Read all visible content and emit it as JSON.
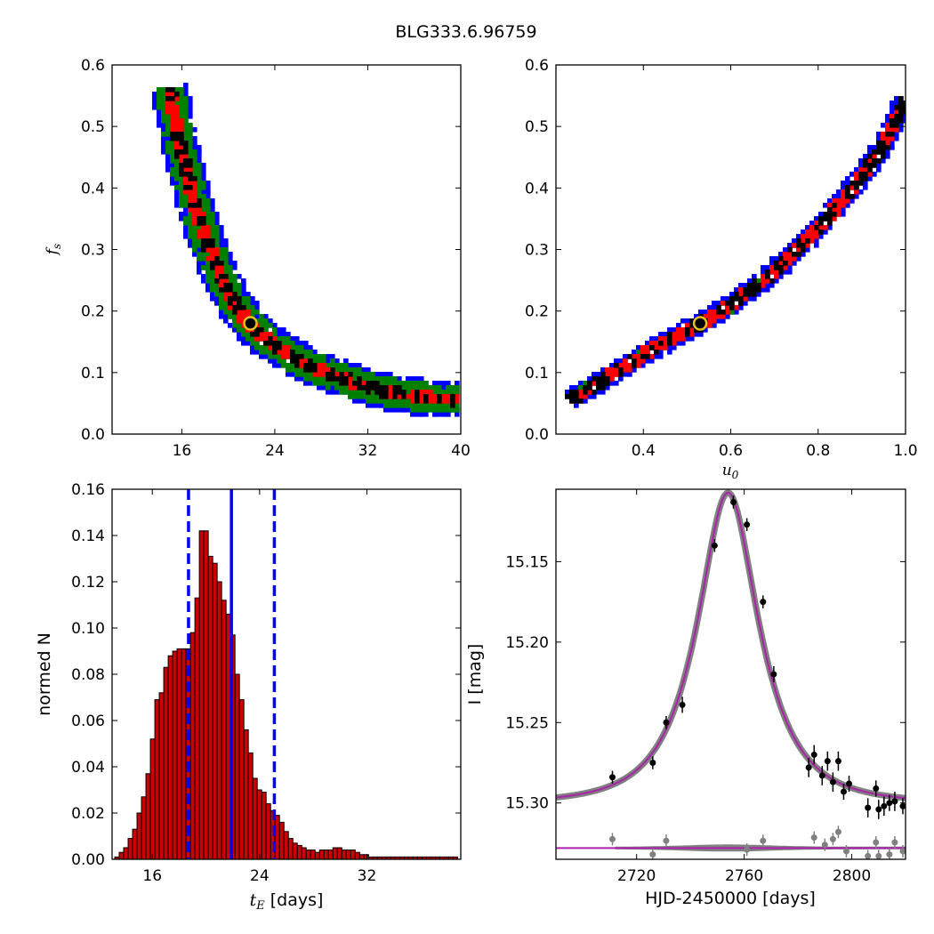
{
  "figure": {
    "title": "BLG333.6.96759"
  },
  "chart_data": [
    {
      "id": "fs-vs-tE",
      "type": "heatmap",
      "xlabel": "",
      "ylabel": "f_s",
      "xlim": [
        10,
        40
      ],
      "ylim": [
        0.0,
        0.6
      ],
      "xticks": [
        16,
        24,
        32,
        40
      ],
      "yticks": [
        0.0,
        0.1,
        0.2,
        0.3,
        0.4,
        0.5,
        0.6
      ],
      "ytick_labels": [
        "0.0",
        "0.1",
        "0.2",
        "0.3",
        "0.4",
        "0.5",
        "0.6"
      ],
      "best_fit": {
        "x": 21.9,
        "y": 0.18
      },
      "levels": [
        {
          "name": "3 sigma",
          "color": "#0000ff"
        },
        {
          "name": "2 sigma",
          "color": "#008000"
        },
        {
          "name": "1 sigma",
          "color": "#ff0000"
        },
        {
          "name": "best",
          "color": "#000000"
        }
      ],
      "centerline": [
        [
          15.0,
          0.56
        ],
        [
          15.5,
          0.5
        ],
        [
          16.2,
          0.44
        ],
        [
          17.0,
          0.38
        ],
        [
          18.0,
          0.32
        ],
        [
          19.0,
          0.27
        ],
        [
          20.0,
          0.23
        ],
        [
          21.0,
          0.2
        ],
        [
          22.0,
          0.175
        ],
        [
          23.0,
          0.158
        ],
        [
          24.0,
          0.145
        ],
        [
          25.0,
          0.132
        ],
        [
          26.0,
          0.12
        ],
        [
          27.0,
          0.11
        ],
        [
          28.5,
          0.1
        ],
        [
          30.0,
          0.09
        ],
        [
          31.5,
          0.08
        ],
        [
          33.0,
          0.072
        ],
        [
          34.5,
          0.066
        ],
        [
          36.0,
          0.062
        ],
        [
          38.0,
          0.058
        ],
        [
          40.0,
          0.056
        ]
      ],
      "band_halfwidths": {
        "blue": 1.5,
        "green": 1.0,
        "red": 0.45,
        "black": 0.2
      }
    },
    {
      "id": "fs-vs-u0",
      "type": "heatmap",
      "xlabel": "u_0",
      "ylabel": "",
      "xlim": [
        0.2,
        1.0
      ],
      "ylim": [
        0.0,
        0.6
      ],
      "xticks": [
        0.4,
        0.6,
        0.8,
        1.0
      ],
      "xtick_labels": [
        "0.4",
        "0.6",
        "0.8",
        "1.0"
      ],
      "yticks": [
        0.0,
        0.1,
        0.2,
        0.3,
        0.4,
        0.5,
        0.6
      ],
      "ytick_labels": [
        "0.0",
        "0.1",
        "0.2",
        "0.3",
        "0.4",
        "0.5",
        "0.6"
      ],
      "best_fit": {
        "x": 0.53,
        "y": 0.18
      },
      "centerline": [
        [
          0.235,
          0.058
        ],
        [
          0.3,
          0.085
        ],
        [
          0.4,
          0.13
        ],
        [
          0.5,
          0.17
        ],
        [
          0.53,
          0.18
        ],
        [
          0.6,
          0.21
        ],
        [
          0.7,
          0.265
        ],
        [
          0.8,
          0.335
        ],
        [
          0.9,
          0.42
        ],
        [
          0.95,
          0.47
        ],
        [
          1.0,
          0.545
        ]
      ],
      "band_halfwidths": {
        "blue": 0.02,
        "green": 0.013,
        "red": 0.006,
        "black": 0.003
      }
    },
    {
      "id": "tE-histogram",
      "type": "bar",
      "xlabel": "t_E [days]",
      "ylabel": "normed N",
      "xlim": [
        13,
        39
      ],
      "ylim": [
        0.0,
        0.16
      ],
      "xticks": [
        16,
        24,
        32
      ],
      "yticks": [
        0.0,
        0.02,
        0.04,
        0.06,
        0.08,
        0.1,
        0.12,
        0.14,
        0.16
      ],
      "ytick_labels": [
        "0.00",
        "0.02",
        "0.04",
        "0.06",
        "0.08",
        "0.10",
        "0.12",
        "0.14",
        "0.16"
      ],
      "bin_start": 13.2,
      "bin_width": 0.332,
      "values": [
        0.001,
        0.003,
        0.005,
        0.009,
        0.013,
        0.02,
        0.027,
        0.037,
        0.052,
        0.069,
        0.072,
        0.083,
        0.088,
        0.09,
        0.091,
        0.091,
        0.091,
        0.098,
        0.113,
        0.142,
        0.142,
        0.131,
        0.128,
        0.12,
        0.112,
        0.106,
        0.097,
        0.08,
        0.069,
        0.056,
        0.046,
        0.035,
        0.03,
        0.029,
        0.024,
        0.021,
        0.019,
        0.016,
        0.012,
        0.009,
        0.007,
        0.006,
        0.005,
        0.004,
        0.004,
        0.003,
        0.004,
        0.004,
        0.004,
        0.005,
        0.005,
        0.004,
        0.004,
        0.004,
        0.003,
        0.002,
        0.002,
        0.001,
        0.001,
        0.001,
        0.001,
        0.001,
        0.001,
        0.001,
        0.001,
        0.001,
        0.001,
        0.001,
        0.001,
        0.001,
        0.001,
        0.001,
        0.001,
        0.001,
        0.001,
        0.001,
        0.001,
        0.001,
        0.001
      ],
      "median": 21.9,
      "lower": 18.7,
      "upper": 25.1,
      "bar_color": "#cc0000",
      "line_color": "#0000ff"
    },
    {
      "id": "light-curve",
      "type": "scatter",
      "xlabel": "HJD-2450000 [days]",
      "ylabel": "I [mag]",
      "xlim": [
        2690,
        2820
      ],
      "ylim": [
        15.335,
        15.105
      ],
      "xticks": [
        2720,
        2760,
        2800
      ],
      "yticks": [
        15.15,
        15.2,
        15.25,
        15.3
      ],
      "ytick_labels": [
        "15.15",
        "15.20",
        "15.25",
        "15.30"
      ],
      "model": {
        "t0": 2754.0,
        "tE": 21.9,
        "u0": 0.53,
        "fs": 0.18,
        "base": 15.3
      },
      "residual_offset": 15.328,
      "points": [
        {
          "x": 2711,
          "y": 15.284,
          "err": 0.004
        },
        {
          "x": 2726,
          "y": 15.275,
          "err": 0.004
        },
        {
          "x": 2731,
          "y": 15.25,
          "err": 0.004
        },
        {
          "x": 2737,
          "y": 15.239,
          "err": 0.005
        },
        {
          "x": 2749,
          "y": 15.14,
          "err": 0.004
        },
        {
          "x": 2756,
          "y": 15.113,
          "err": 0.004
        },
        {
          "x": 2761,
          "y": 15.127,
          "err": 0.004
        },
        {
          "x": 2767,
          "y": 15.175,
          "err": 0.004
        },
        {
          "x": 2771,
          "y": 15.22,
          "err": 0.005
        },
        {
          "x": 2784,
          "y": 15.278,
          "err": 0.006
        },
        {
          "x": 2786,
          "y": 15.27,
          "err": 0.006
        },
        {
          "x": 2789,
          "y": 15.283,
          "err": 0.006
        },
        {
          "x": 2791,
          "y": 15.274,
          "err": 0.006
        },
        {
          "x": 2793,
          "y": 15.287,
          "err": 0.006
        },
        {
          "x": 2795,
          "y": 15.274,
          "err": 0.006
        },
        {
          "x": 2797,
          "y": 15.293,
          "err": 0.005
        },
        {
          "x": 2799,
          "y": 15.288,
          "err": 0.005
        },
        {
          "x": 2806,
          "y": 15.303,
          "err": 0.006
        },
        {
          "x": 2809,
          "y": 15.291,
          "err": 0.005
        },
        {
          "x": 2810,
          "y": 15.304,
          "err": 0.006
        },
        {
          "x": 2812,
          "y": 15.302,
          "err": 0.006
        },
        {
          "x": 2814,
          "y": 15.3,
          "err": 0.005
        },
        {
          "x": 2816,
          "y": 15.299,
          "err": 0.006
        },
        {
          "x": 2819,
          "y": 15.302,
          "err": 0.005
        }
      ],
      "residuals": [
        {
          "x": 2711,
          "y": 15.3225
        },
        {
          "x": 2726,
          "y": 15.332
        },
        {
          "x": 2731,
          "y": 15.3235
        },
        {
          "x": 2761,
          "y": 15.329
        },
        {
          "x": 2767,
          "y": 15.3235
        },
        {
          "x": 2786,
          "y": 15.3215
        },
        {
          "x": 2790,
          "y": 15.326
        },
        {
          "x": 2793,
          "y": 15.3225
        },
        {
          "x": 2795,
          "y": 15.318
        },
        {
          "x": 2798,
          "y": 15.33
        },
        {
          "x": 2806,
          "y": 15.333
        },
        {
          "x": 2809,
          "y": 15.3245
        },
        {
          "x": 2810,
          "y": 15.333
        },
        {
          "x": 2814,
          "y": 15.332
        },
        {
          "x": 2816,
          "y": 15.3245
        },
        {
          "x": 2819,
          "y": 15.33
        }
      ],
      "model_color": "#aa22aa",
      "band_color": "#808080"
    }
  ]
}
